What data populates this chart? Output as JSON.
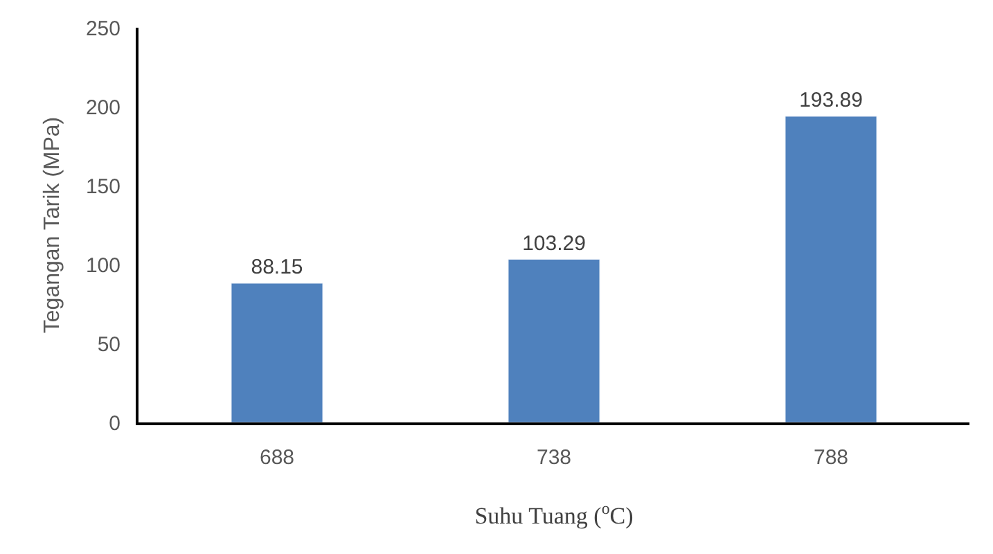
{
  "chart_data": {
    "type": "bar",
    "xlabel": "Suhu Tuang ($^{o}$C)",
    "ylabel": "Tegangan Tarik (MPa)",
    "categories": [
      "688",
      "738",
      "788"
    ],
    "values": [
      88.15,
      103.29,
      193.89
    ],
    "color": "#4f81bd",
    "ylim": [
      0,
      250
    ],
    "yticks": [
      0,
      50,
      100,
      150,
      200,
      250
    ],
    "grid": false,
    "legend": false,
    "data_labels": true
  }
}
